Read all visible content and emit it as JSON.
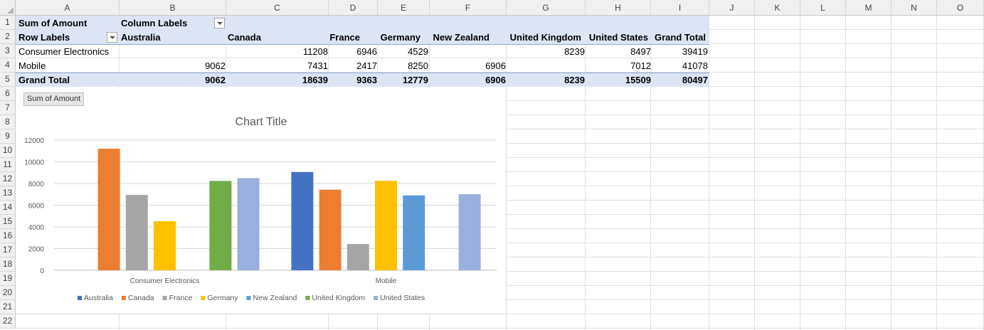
{
  "columns": [
    "A",
    "B",
    "C",
    "D",
    "E",
    "F",
    "G",
    "H",
    "I",
    "J",
    "K",
    "L",
    "M",
    "N",
    "O"
  ],
  "rows": [
    "1",
    "2",
    "3",
    "4",
    "5",
    "6",
    "7",
    "8",
    "9",
    "10",
    "11",
    "12",
    "13",
    "14",
    "15",
    "16",
    "17",
    "18",
    "19",
    "20",
    "21",
    "22"
  ],
  "pivot": {
    "header": {
      "sum_of_amount": "Sum of Amount",
      "column_labels": "Column Labels",
      "row_labels": "Row Labels",
      "countries": [
        "Australia",
        "Canada",
        "France",
        "Germany",
        "New Zealand",
        "United Kingdom",
        "United States"
      ],
      "grand_total": "Grand Total"
    },
    "rows": [
      {
        "label": "Consumer Electronics",
        "values": [
          "",
          "11208",
          "6946",
          "4529",
          "",
          "8239",
          "8497"
        ],
        "total": "39419"
      },
      {
        "label": "Mobile",
        "values": [
          "9062",
          "7431",
          "2417",
          "8250",
          "6906",
          "",
          "7012"
        ],
        "total": "41078"
      }
    ],
    "grand_total_row": {
      "label": "Grand Total",
      "values": [
        "9062",
        "18639",
        "9363",
        "12779",
        "6906",
        "8239",
        "15509"
      ],
      "total": "80497"
    }
  },
  "chart": {
    "field_button": "Sum of Amount"
  },
  "chart_data": {
    "type": "bar",
    "title": "Chart Title",
    "categories": [
      "Consumer Electronics",
      "Mobile"
    ],
    "series": [
      {
        "name": "Australia",
        "color": "#4472C4",
        "values": [
          null,
          9062
        ]
      },
      {
        "name": "Canada",
        "color": "#ED7D31",
        "values": [
          11208,
          7431
        ]
      },
      {
        "name": "France",
        "color": "#A5A5A5",
        "values": [
          6946,
          2417
        ]
      },
      {
        "name": "Germany",
        "color": "#FFC000",
        "values": [
          4529,
          8250
        ]
      },
      {
        "name": "New Zealand",
        "color": "#5B9BD5",
        "values": [
          null,
          6906
        ]
      },
      {
        "name": "United Kingdom",
        "color": "#70AD47",
        "values": [
          8239,
          null
        ]
      },
      {
        "name": "United States",
        "color": "#9AAFDE",
        "values": [
          8497,
          7012
        ]
      }
    ],
    "yticks": [
      "0",
      "2000",
      "4000",
      "6000",
      "8000",
      "10000",
      "12000"
    ],
    "ylim": [
      0,
      12000
    ],
    "grid": true,
    "legend": "bottom"
  }
}
